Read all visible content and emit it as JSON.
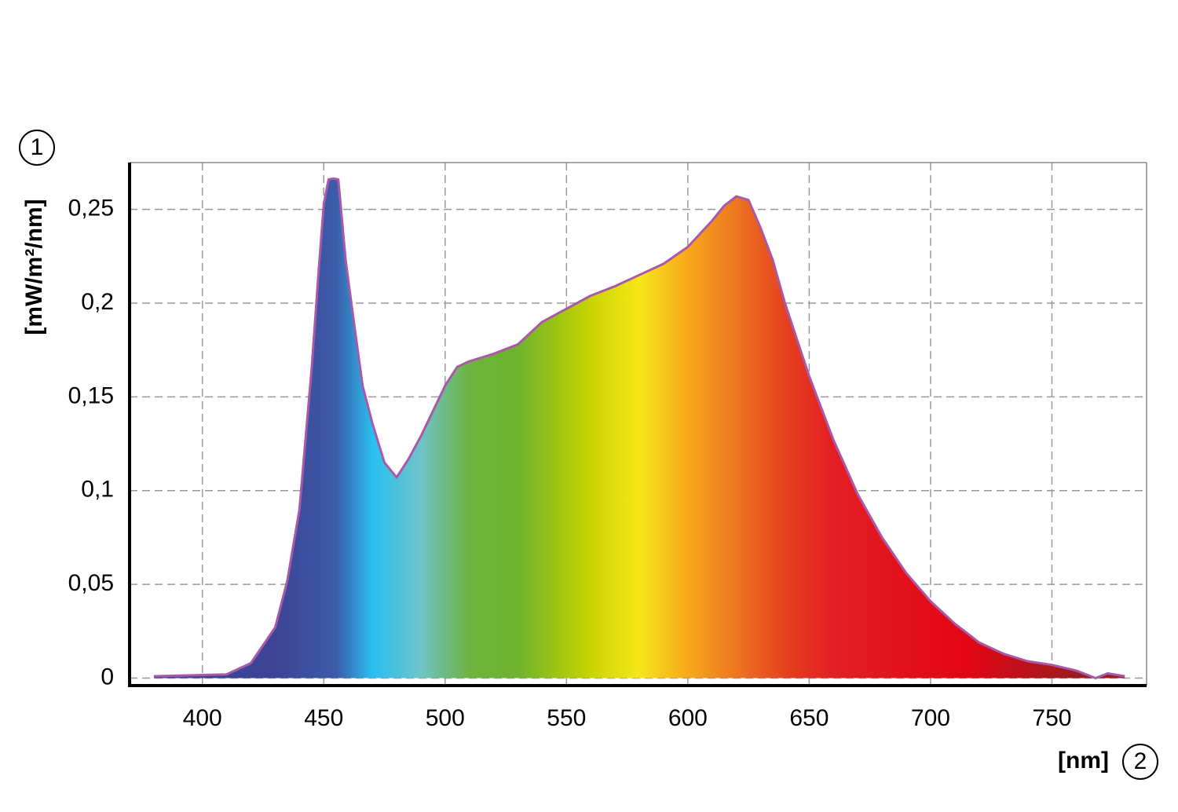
{
  "chart_data": {
    "type": "area",
    "y_label": "[mW/m²/nm]",
    "x_label": "[nm]",
    "annotations": [
      "1",
      "2"
    ],
    "x": [
      380,
      410,
      420,
      430,
      435,
      440,
      445,
      448,
      450,
      452,
      454,
      456,
      459,
      462,
      466,
      470,
      475,
      480,
      485,
      490,
      500,
      505,
      510,
      520,
      530,
      540,
      550,
      560,
      570,
      580,
      590,
      600,
      610,
      615,
      620,
      625,
      630,
      635,
      640,
      650,
      660,
      670,
      680,
      690,
      700,
      710,
      720,
      730,
      740,
      750,
      760,
      768,
      773,
      780
    ],
    "values": [
      0.001,
      0.002,
      0.008,
      0.027,
      0.052,
      0.09,
      0.165,
      0.219,
      0.253,
      0.266,
      0.2665,
      0.266,
      0.223,
      0.194,
      0.156,
      0.136,
      0.115,
      0.107,
      0.117,
      0.129,
      0.156,
      0.166,
      0.169,
      0.173,
      0.178,
      0.19,
      0.197,
      0.204,
      0.209,
      0.215,
      0.221,
      0.23,
      0.244,
      0.252,
      0.257,
      0.255,
      0.24,
      0.223,
      0.2,
      0.161,
      0.127,
      0.098,
      0.075,
      0.056,
      0.041,
      0.029,
      0.019,
      0.013,
      0.009,
      0.007,
      0.004,
      0,
      0.0025,
      0.001
    ],
    "color": "#a85aa8",
    "xlim": [
      370,
      789
    ],
    "ylim": [
      -0.004,
      0.275
    ],
    "xticks": [
      400,
      450,
      500,
      550,
      600,
      650,
      700,
      750
    ],
    "yticks": [
      0,
      {
        "value": 0.05,
        "label": "0,05"
      },
      {
        "value": 0.1,
        "label": "0,1"
      },
      {
        "value": 0.15,
        "label": "0,15"
      },
      {
        "value": 0.2,
        "label": "0,2"
      },
      {
        "value": 0.25,
        "label": "0,25"
      }
    ],
    "grid": true
  }
}
